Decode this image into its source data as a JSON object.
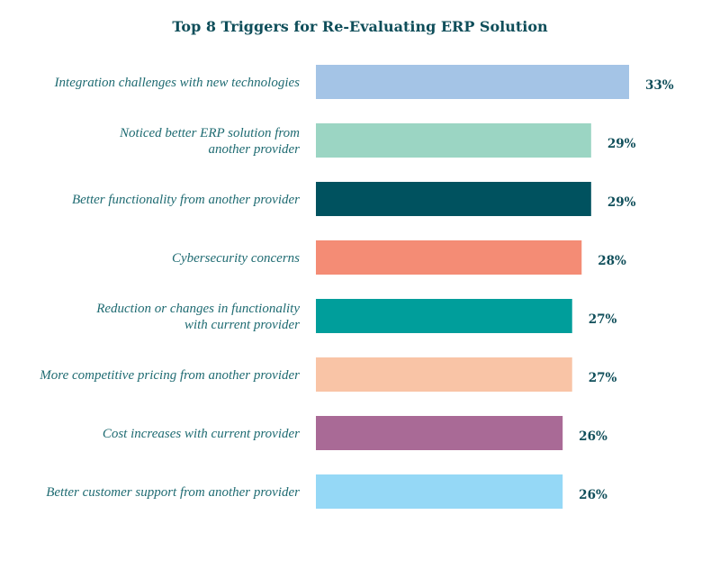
{
  "chart_data": {
    "type": "bar",
    "orientation": "horizontal",
    "title": "Top 8 Triggers for Re-Evaluating ERP Solution",
    "xlabel": "",
    "ylabel": "",
    "xlim": [
      0,
      33
    ],
    "grid": false,
    "categories": [
      "Integration challenges with new technologies",
      "Noticed better ERP solution from\nanother provider",
      "Better functionality from another provider",
      "Cybersecurity concerns",
      "Reduction or changes in functionality\nwith current provider",
      "More competitive pricing from another provider",
      "Cost increases with current provider",
      "Better customer support from another provider"
    ],
    "values": [
      33,
      29,
      29,
      28,
      27,
      27,
      26,
      26
    ],
    "value_labels": [
      "33%",
      "29%",
      "29%",
      "28%",
      "27%",
      "27%",
      "26%",
      "26%"
    ],
    "colors": [
      "#a4c4e6",
      "#9bd5c3",
      "#00525f",
      "#f48c75",
      "#009e9b",
      "#f9c4a6",
      "#a96a96",
      "#95d8f6"
    ]
  }
}
